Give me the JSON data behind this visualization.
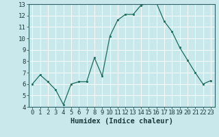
{
  "x": [
    0,
    1,
    2,
    3,
    4,
    5,
    6,
    7,
    8,
    9,
    10,
    11,
    12,
    13,
    14,
    15,
    16,
    17,
    18,
    19,
    20,
    21,
    22,
    23
  ],
  "y": [
    6.0,
    6.8,
    6.2,
    5.5,
    4.2,
    6.0,
    6.2,
    6.2,
    8.3,
    6.7,
    10.2,
    11.6,
    12.1,
    12.1,
    12.9,
    13.1,
    13.1,
    11.5,
    10.6,
    9.2,
    8.1,
    7.0,
    6.0,
    6.3
  ],
  "line_color": "#1a6b5a",
  "marker_color": "#1a6b5a",
  "bg_color": "#c8e8ec",
  "grid_color": "#b0d8dc",
  "xlabel": "Humidex (Indice chaleur)",
  "ylim": [
    4,
    13
  ],
  "xlim_min": -0.5,
  "xlim_max": 23.5,
  "yticks": [
    4,
    5,
    6,
    7,
    8,
    9,
    10,
    11,
    12,
    13
  ],
  "xticks": [
    0,
    1,
    2,
    3,
    4,
    5,
    6,
    7,
    8,
    9,
    10,
    11,
    12,
    13,
    14,
    15,
    16,
    17,
    18,
    19,
    20,
    21,
    22,
    23
  ],
  "tick_fontsize": 6.5,
  "label_fontsize": 7.5
}
